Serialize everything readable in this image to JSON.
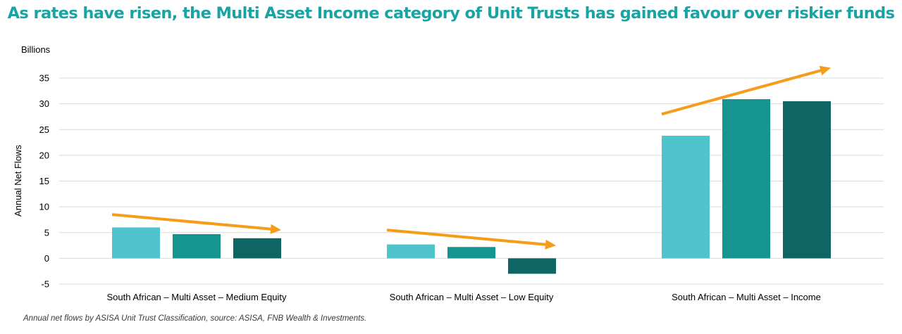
{
  "chart_data": {
    "type": "bar",
    "title": "As rates have risen, the Multi Asset Income category of  Unit Trusts has gained favour over riskier funds",
    "units_label": "Billions",
    "ylabel": "Annual Net Flows",
    "xlabel": "",
    "ylim": [
      -5,
      35
    ],
    "yticks": [
      -5,
      0,
      5,
      10,
      15,
      20,
      25,
      30,
      35
    ],
    "grid": true,
    "legend": "none",
    "categories": [
      "South African – Multi Asset – Medium Equity",
      "South African – Multi Asset – Low Equity",
      "South African – Multi Asset – Income"
    ],
    "series": [
      {
        "color": "#4fc4cc",
        "values": [
          6.0,
          2.7,
          23.8
        ]
      },
      {
        "color": "#16948f",
        "values": [
          4.7,
          2.2,
          30.9
        ]
      },
      {
        "color": "#0e6563",
        "values": [
          3.9,
          -3.0,
          30.5
        ]
      }
    ],
    "trend_arrows": [
      {
        "category": 0,
        "from": 8.5,
        "to": 5.5
      },
      {
        "category": 1,
        "from": 5.5,
        "to": 2.5
      },
      {
        "category": 2,
        "from": 28.0,
        "to": 37.0
      }
    ],
    "arrow_color": "#f59c1a",
    "source": "Annual net flows by ASISA Unit Trust Classification, source: ASISA, FNB Wealth & Investments."
  }
}
